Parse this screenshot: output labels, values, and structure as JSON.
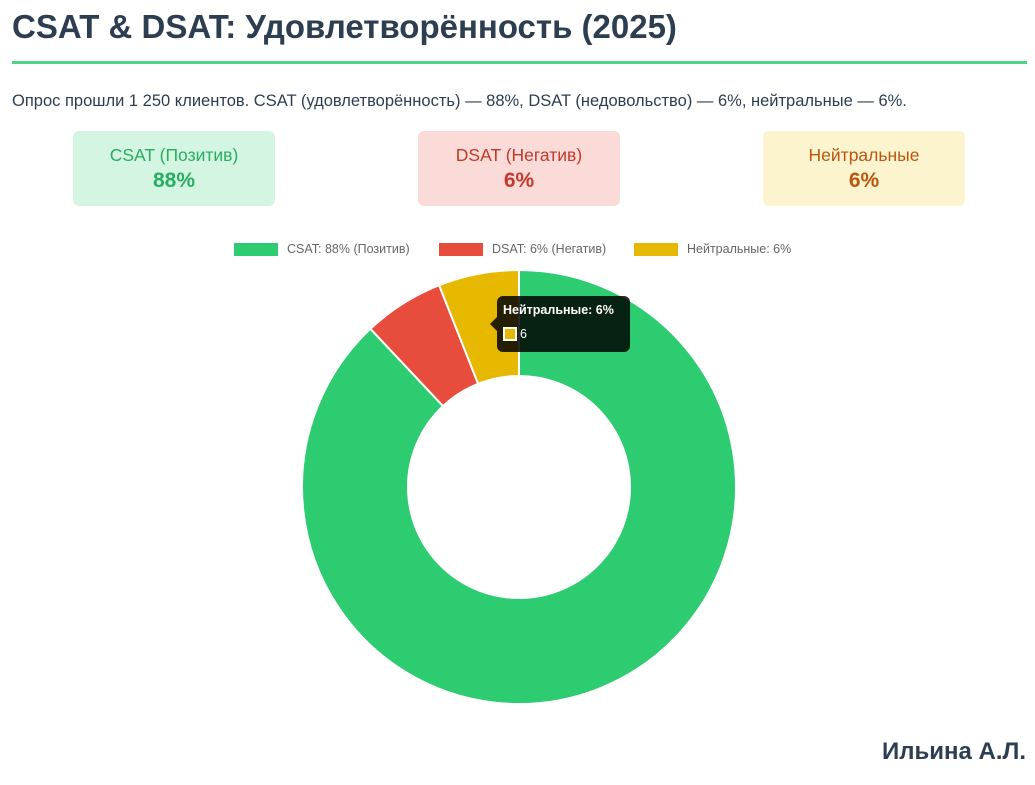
{
  "title": "CSAT & DSAT: Удовлетворённость (2025)",
  "subtitle": "Опрос прошли 1 250 клиентов. CSAT (удовлетворённость) — 88%, DSAT (недовольство) — 6%, нейтральные — 6%.",
  "kpis": {
    "csat": {
      "label": "CSAT (Позитив)",
      "value": "88%"
    },
    "dsat": {
      "label": "DSAT (Негатив)",
      "value": "6%"
    },
    "neutral": {
      "label": "Нейтральные",
      "value": "6%"
    }
  },
  "chart_data": {
    "type": "pie",
    "style": "doughnut",
    "labels": [
      "CSAT: 88% (Позитив)",
      "DSAT: 6% (Негатив)",
      "Нейтральные: 6%"
    ],
    "values": [
      88,
      6,
      6
    ],
    "colors": [
      "#2ecc71",
      "#e74c3c",
      "#e6b800"
    ],
    "legend_position": "top",
    "title": "",
    "xlabel": "",
    "ylabel": ""
  },
  "tooltip": {
    "title": "Нейтральные: 6%",
    "value": "6"
  },
  "author": "Ильина А.Л."
}
